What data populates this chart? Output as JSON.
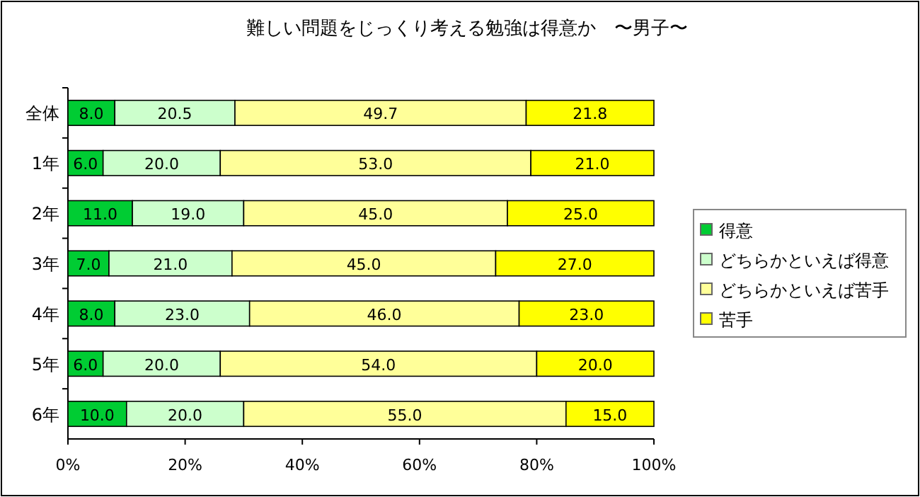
{
  "chart_data": {
    "type": "bar",
    "orientation": "horizontal",
    "stacked": true,
    "title": "難しい問題をじっくり考える勉強は得意か　〜男子〜",
    "categories": [
      "全体",
      "1年",
      "2年",
      "3年",
      "4年",
      "5年",
      "6年"
    ],
    "series": [
      {
        "name": "得意",
        "color": "#00cc33",
        "values": [
          8.0,
          6.0,
          11.0,
          7.0,
          8.0,
          6.0,
          10.0
        ],
        "value_labels": [
          "8.0",
          "6.0",
          "11.0",
          "7.0",
          "8.0",
          "6.0",
          "10.0"
        ]
      },
      {
        "name": "どちらかといえば得意",
        "color": "#ccffcc",
        "values": [
          20.5,
          20.0,
          19.0,
          21.0,
          23.0,
          20.0,
          20.0
        ],
        "value_labels": [
          "20.5",
          "20.0",
          "19.0",
          "21.0",
          "23.0",
          "20.0",
          "20.0"
        ]
      },
      {
        "name": "どちらかといえば苦手",
        "color": "#ffff99",
        "values": [
          49.7,
          53.0,
          45.0,
          45.0,
          46.0,
          54.0,
          55.0
        ],
        "value_labels": [
          "49.7",
          "53.0",
          "45.0",
          "45.0",
          "46.0",
          "54.0",
          "55.0"
        ]
      },
      {
        "name": "苦手",
        "color": "#ffff00",
        "values": [
          21.8,
          21.0,
          25.0,
          27.0,
          23.0,
          20.0,
          15.0
        ],
        "value_labels": [
          "21.8",
          "21.0",
          "25.0",
          "27.0",
          "23.0",
          "20.0",
          "15.0"
        ]
      }
    ],
    "xlim": [
      0,
      100
    ],
    "xticks": [
      {
        "value": 0,
        "label": "0%"
      },
      {
        "value": 20,
        "label": "20%"
      },
      {
        "value": 40,
        "label": "40%"
      },
      {
        "value": 60,
        "label": "60%"
      },
      {
        "value": 80,
        "label": "80%"
      },
      {
        "value": 100,
        "label": "100%"
      }
    ],
    "legend": "right"
  }
}
